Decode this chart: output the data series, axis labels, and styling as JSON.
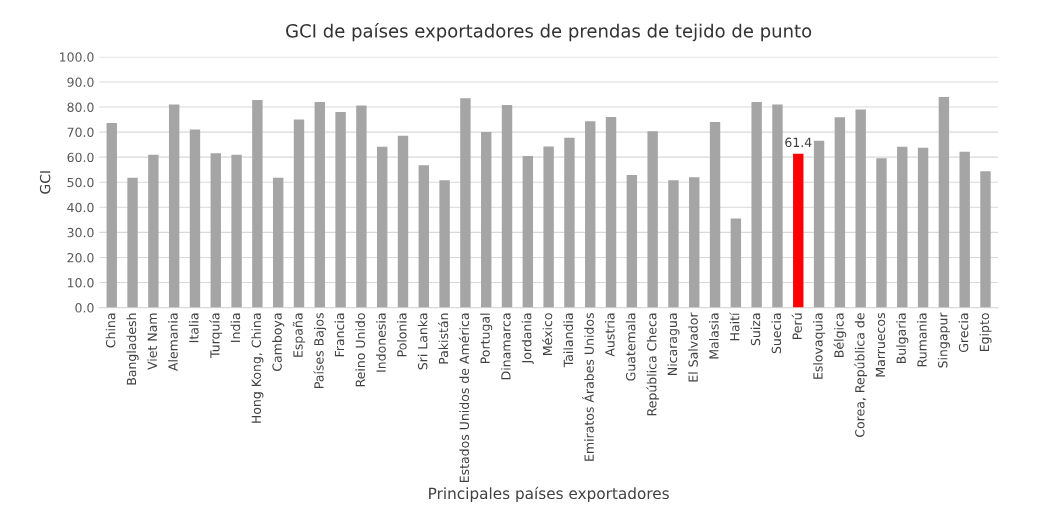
{
  "chart_data": {
    "type": "bar",
    "title": "GCI de países exportadores de prendas de tejido de punto",
    "xlabel": "Principales países exportadores",
    "ylabel": "GCI",
    "categories": [
      "China",
      "Bangladesh",
      "Viet Nam",
      "Alemania",
      "Italia",
      "Turquía",
      "India",
      "Hong Kong, China",
      "Camboya",
      "España",
      "Países Bajos",
      "Francia",
      "Reino Unido",
      "Indonesia",
      "Polonia",
      "Sri Lanka",
      "Pakistán",
      "Estados Unidos de América",
      "Portugal",
      "Dinamarca",
      "Jordania",
      "México",
      "Tailandia",
      "Emiratos Árabes Unidos",
      "Austria",
      "Guatemala",
      "República Checa",
      "Nicaragua",
      "El Salvador",
      "Malasia",
      "Haití",
      "Suiza",
      "Suecia",
      "Perú",
      "Eslovaquia",
      "Bélgica",
      "Corea, República de",
      "Marruecos",
      "Bulgaria",
      "Rumania",
      "Singapur",
      "Grecia",
      "Egipto"
    ],
    "values": [
      73.6,
      51.8,
      61.0,
      81.0,
      71.0,
      61.6,
      61.0,
      82.8,
      51.8,
      75.0,
      82.0,
      78.0,
      80.6,
      64.2,
      68.5,
      56.8,
      50.8,
      83.5,
      70.0,
      80.8,
      60.5,
      64.3,
      67.7,
      74.3,
      76.0,
      52.9,
      70.3,
      50.8,
      52.0,
      74.0,
      35.5,
      82.0,
      81.0,
      61.4,
      66.5,
      75.9,
      79.0,
      59.6,
      64.2,
      63.8,
      84.0,
      62.2,
      54.4
    ],
    "colors": [
      "#a5a5a5",
      "#a5a5a5",
      "#a5a5a5",
      "#a5a5a5",
      "#a5a5a5",
      "#a5a5a5",
      "#a5a5a5",
      "#a5a5a5",
      "#a5a5a5",
      "#a5a5a5",
      "#a5a5a5",
      "#a5a5a5",
      "#a5a5a5",
      "#a5a5a5",
      "#a5a5a5",
      "#a5a5a5",
      "#a5a5a5",
      "#a5a5a5",
      "#a5a5a5",
      "#a5a5a5",
      "#a5a5a5",
      "#a5a5a5",
      "#a5a5a5",
      "#a5a5a5",
      "#a5a5a5",
      "#a5a5a5",
      "#a5a5a5",
      "#a5a5a5",
      "#a5a5a5",
      "#a5a5a5",
      "#a5a5a5",
      "#a5a5a5",
      "#a5a5a5",
      "#ff0000",
      "#a5a5a5",
      "#a5a5a5",
      "#a5a5a5",
      "#a5a5a5",
      "#a5a5a5",
      "#a5a5a5",
      "#a5a5a5",
      "#a5a5a5",
      "#a5a5a5"
    ],
    "value_labels": [
      null,
      null,
      null,
      null,
      null,
      null,
      null,
      null,
      null,
      null,
      null,
      null,
      null,
      null,
      null,
      null,
      null,
      null,
      null,
      null,
      null,
      null,
      null,
      null,
      null,
      null,
      null,
      null,
      null,
      null,
      null,
      null,
      null,
      "61.4",
      null,
      null,
      null,
      null,
      null,
      null,
      null,
      null,
      null
    ],
    "ylim": [
      0,
      100
    ],
    "yticks": [
      {
        "value": 0,
        "label": "0.0"
      },
      {
        "value": 10,
        "label": "10.0"
      },
      {
        "value": 20,
        "label": "20.0"
      },
      {
        "value": 30,
        "label": "30.0"
      },
      {
        "value": 40,
        "label": "40.0"
      },
      {
        "value": 50,
        "label": "50.0"
      },
      {
        "value": 60,
        "label": "60.0"
      },
      {
        "value": 70,
        "label": "70.0"
      },
      {
        "value": 80,
        "label": "80.0"
      },
      {
        "value": 90,
        "label": "90.0"
      },
      {
        "value": 100,
        "label": "100.0"
      }
    ],
    "grid": "y",
    "legend": false
  }
}
